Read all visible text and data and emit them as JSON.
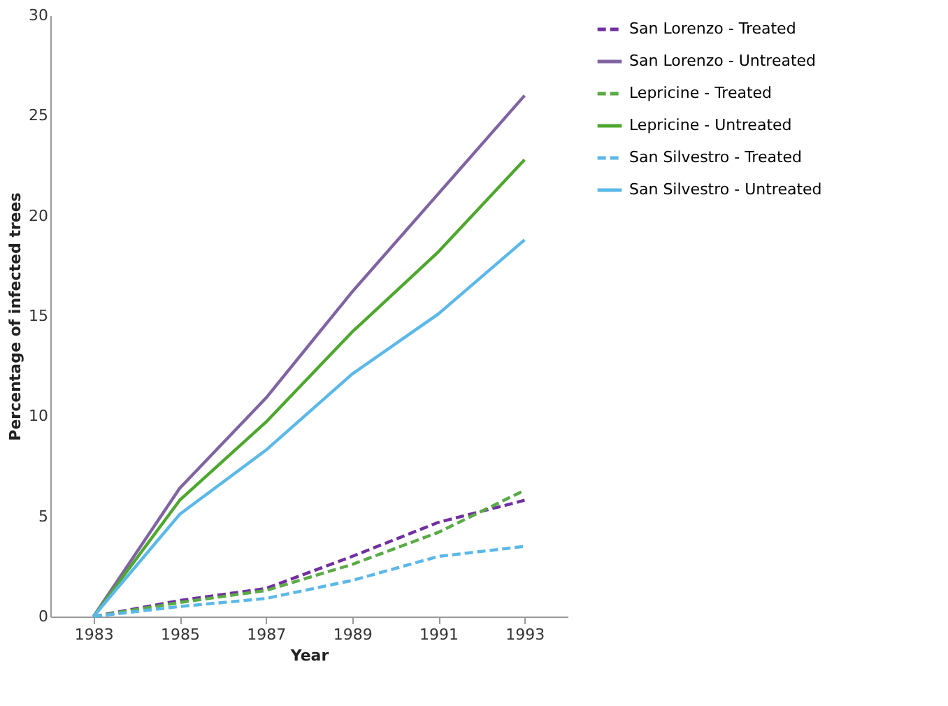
{
  "chart_data": {
    "type": "line",
    "xlabel": "Year",
    "ylabel": "Percentage of infected trees",
    "x": [
      1983,
      1985,
      1987,
      1989,
      1991,
      1993
    ],
    "xlim": [
      1982,
      1994
    ],
    "xticks": [
      1983,
      1985,
      1987,
      1989,
      1991,
      1993
    ],
    "ylim": [
      0,
      30
    ],
    "yticks": [
      0,
      5,
      10,
      15,
      20,
      25,
      30
    ],
    "grid": false,
    "legend": "right",
    "marker": "none",
    "series": [
      {
        "name": "San Lorenzo - Treated",
        "color": "#7030a0",
        "line_style": "dashed",
        "values": [
          0,
          0.8,
          1.4,
          3.0,
          4.7,
          5.8
        ]
      },
      {
        "name": "San Lorenzo - Untreated",
        "color": "#8064a2",
        "line_style": "solid",
        "values": [
          0,
          6.4,
          10.9,
          16.2,
          21.1,
          26.0
        ]
      },
      {
        "name": "Lepricine - Treated",
        "color": "#5aaa46",
        "line_style": "dashed",
        "values": [
          0,
          0.7,
          1.3,
          2.6,
          4.2,
          6.3
        ]
      },
      {
        "name": "Lepricine - Untreated",
        "color": "#4ea72e",
        "line_style": "solid",
        "values": [
          0,
          5.8,
          9.7,
          14.2,
          18.2,
          22.8
        ]
      },
      {
        "name": "San Silvestro - Treated",
        "color": "#5bb8e8",
        "line_style": "dashed",
        "values": [
          0,
          0.5,
          0.9,
          1.8,
          3.0,
          3.5
        ]
      },
      {
        "name": "San Silvestro - Untreated",
        "color": "#5bb8e8",
        "line_style": "solid",
        "values": [
          0,
          5.1,
          8.3,
          12.1,
          15.1,
          18.8
        ]
      }
    ]
  }
}
